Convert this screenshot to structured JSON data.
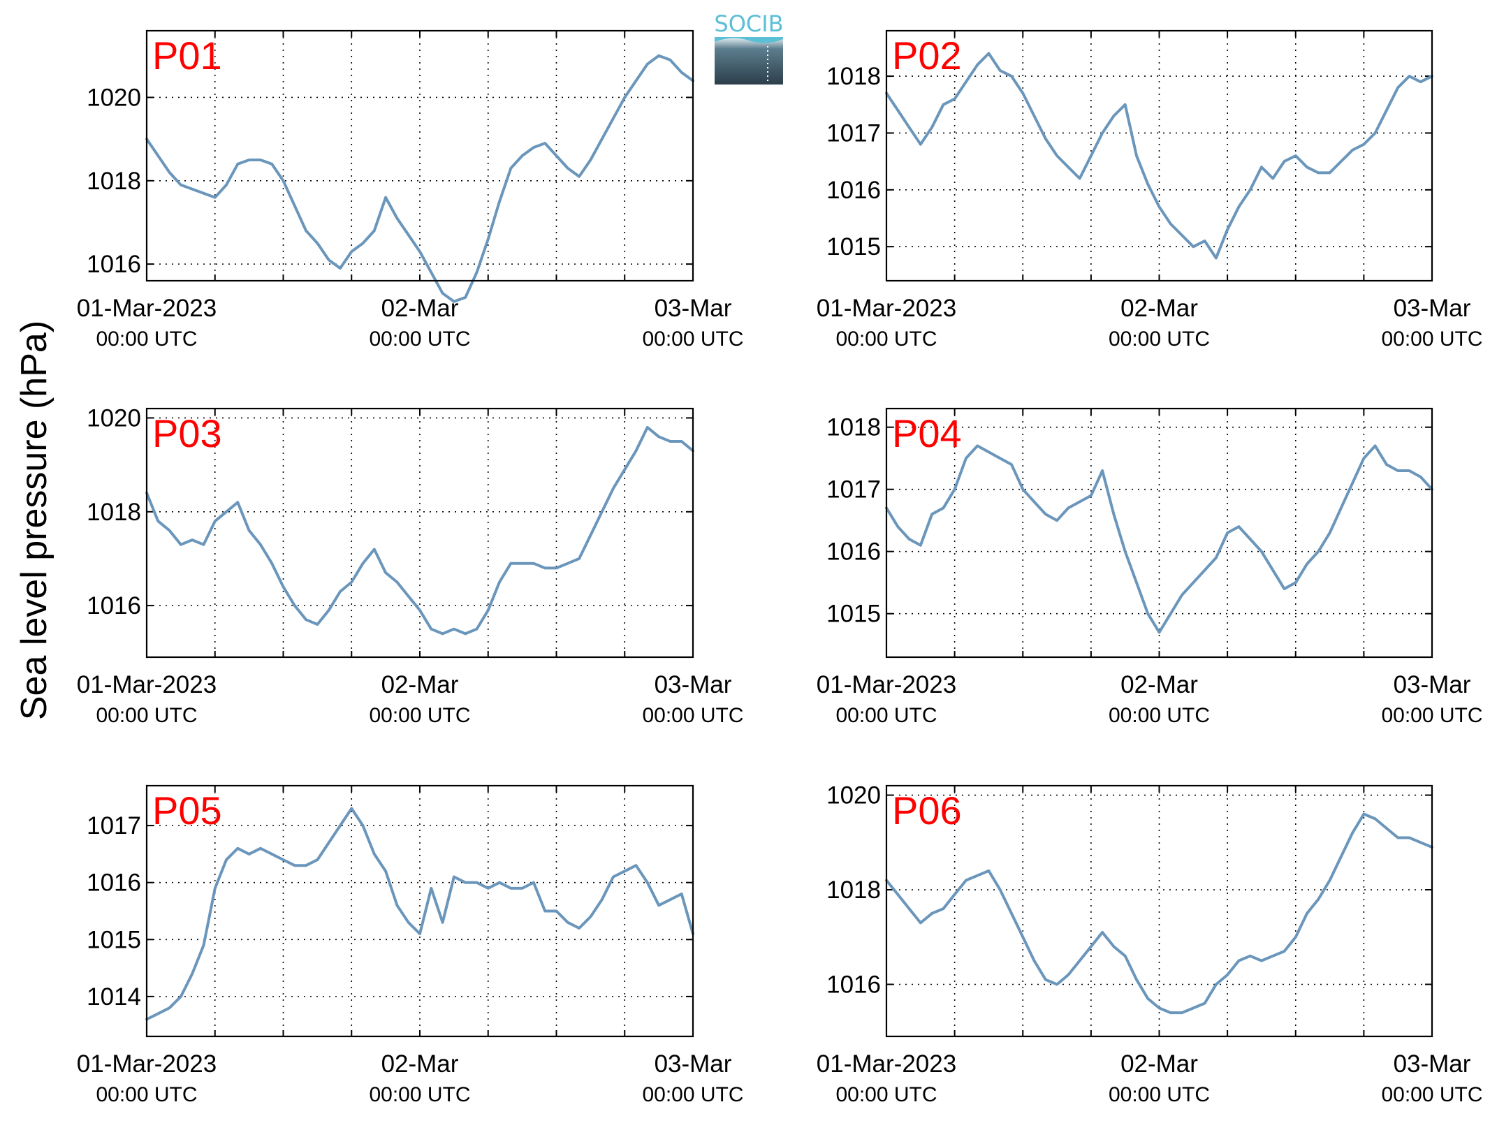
{
  "figure": {
    "ylabel": "Sea level pressure (hPa)",
    "logo_text": "SOCIB",
    "line_color": "#6b96bb",
    "label_color": "#ff0000",
    "logo_color": "#5bbfd6"
  },
  "chart_data": [
    {
      "type": "line",
      "panel_label": "P01",
      "xlim": [
        0,
        48
      ],
      "ylim": [
        1015.6,
        1021.6
      ],
      "yticks": [
        1016,
        1018,
        1020
      ],
      "xticks": [
        {
          "x": 0,
          "line1": "01-Mar-2023",
          "line2": "00:00 UTC"
        },
        {
          "x": 24,
          "line1": "02-Mar",
          "line2": "00:00 UTC"
        },
        {
          "x": 48,
          "line1": "03-Mar",
          "line2": "00:00 UTC"
        }
      ],
      "grid": true,
      "series": [
        {
          "x": [
            0,
            1,
            2,
            3,
            4,
            5,
            6,
            7,
            8,
            9,
            10,
            11,
            12,
            13,
            14,
            15,
            16,
            17,
            18,
            19,
            20,
            21,
            22,
            23,
            24,
            25,
            26,
            27,
            28,
            29,
            30,
            31,
            32,
            33,
            34,
            35,
            36,
            37,
            38,
            39,
            40,
            41,
            42,
            43,
            44,
            45,
            46,
            47,
            48
          ],
          "y": [
            1019.0,
            1018.6,
            1018.2,
            1017.9,
            1017.8,
            1017.7,
            1017.6,
            1017.9,
            1018.4,
            1018.5,
            1018.5,
            1018.4,
            1018.0,
            1017.4,
            1016.8,
            1016.5,
            1016.1,
            1015.9,
            1016.3,
            1016.5,
            1016.8,
            1017.6,
            1017.1,
            1016.7,
            1016.3,
            1015.8,
            1015.3,
            1015.1,
            1015.2,
            1015.8,
            1016.6,
            1017.5,
            1018.3,
            1018.6,
            1018.8,
            1018.9,
            1018.6,
            1018.3,
            1018.1,
            1018.5,
            1019.0,
            1019.5,
            1020.0,
            1020.4,
            1020.8,
            1021.0,
            1020.9,
            1020.6,
            1020.4
          ]
        }
      ]
    },
    {
      "type": "line",
      "panel_label": "P02",
      "xlim": [
        0,
        48
      ],
      "ylim": [
        1014.4,
        1018.8
      ],
      "yticks": [
        1015,
        1016,
        1017,
        1018
      ],
      "xticks": [
        {
          "x": 0,
          "line1": "01-Mar-2023",
          "line2": "00:00 UTC"
        },
        {
          "x": 24,
          "line1": "02-Mar",
          "line2": "00:00 UTC"
        },
        {
          "x": 48,
          "line1": "03-Mar",
          "line2": "00:00 UTC"
        }
      ],
      "grid": true,
      "series": [
        {
          "x": [
            0,
            1,
            2,
            3,
            4,
            5,
            6,
            7,
            8,
            9,
            10,
            11,
            12,
            13,
            14,
            15,
            16,
            17,
            18,
            19,
            20,
            21,
            22,
            23,
            24,
            25,
            26,
            27,
            28,
            29,
            30,
            31,
            32,
            33,
            34,
            35,
            36,
            37,
            38,
            39,
            40,
            41,
            42,
            43,
            44,
            45,
            46,
            47,
            48
          ],
          "y": [
            1017.7,
            1017.4,
            1017.1,
            1016.8,
            1017.1,
            1017.5,
            1017.6,
            1017.9,
            1018.2,
            1018.4,
            1018.1,
            1018.0,
            1017.7,
            1017.3,
            1016.9,
            1016.6,
            1016.4,
            1016.2,
            1016.6,
            1017.0,
            1017.3,
            1017.5,
            1016.6,
            1016.1,
            1015.7,
            1015.4,
            1015.2,
            1015.0,
            1015.1,
            1014.8,
            1015.3,
            1015.7,
            1016.0,
            1016.4,
            1016.2,
            1016.5,
            1016.6,
            1016.4,
            1016.3,
            1016.3,
            1016.5,
            1016.7,
            1016.8,
            1017.0,
            1017.4,
            1017.8,
            1018.0,
            1017.9,
            1018.0
          ]
        }
      ]
    },
    {
      "type": "line",
      "panel_label": "P03",
      "xlim": [
        0,
        48
      ],
      "ylim": [
        1014.9,
        1020.2
      ],
      "yticks": [
        1016,
        1018,
        1020
      ],
      "xticks": [
        {
          "x": 0,
          "line1": "01-Mar-2023",
          "line2": "00:00 UTC"
        },
        {
          "x": 24,
          "line1": "02-Mar",
          "line2": "00:00 UTC"
        },
        {
          "x": 48,
          "line1": "03-Mar",
          "line2": "00:00 UTC"
        }
      ],
      "grid": true,
      "series": [
        {
          "x": [
            0,
            1,
            2,
            3,
            4,
            5,
            6,
            7,
            8,
            9,
            10,
            11,
            12,
            13,
            14,
            15,
            16,
            17,
            18,
            19,
            20,
            21,
            22,
            23,
            24,
            25,
            26,
            27,
            28,
            29,
            30,
            31,
            32,
            33,
            34,
            35,
            36,
            37,
            38,
            39,
            40,
            41,
            42,
            43,
            44,
            45,
            46,
            47,
            48
          ],
          "y": [
            1018.4,
            1017.8,
            1017.6,
            1017.3,
            1017.4,
            1017.3,
            1017.8,
            1018.0,
            1018.2,
            1017.6,
            1017.3,
            1016.9,
            1016.4,
            1016.0,
            1015.7,
            1015.6,
            1015.9,
            1016.3,
            1016.5,
            1016.9,
            1017.2,
            1016.7,
            1016.5,
            1016.2,
            1015.9,
            1015.5,
            1015.4,
            1015.5,
            1015.4,
            1015.5,
            1015.9,
            1016.5,
            1016.9,
            1016.9,
            1016.9,
            1016.8,
            1016.8,
            1016.9,
            1017.0,
            1017.5,
            1018.0,
            1018.5,
            1018.9,
            1019.3,
            1019.8,
            1019.6,
            1019.5,
            1019.5,
            1019.3
          ]
        }
      ]
    },
    {
      "type": "line",
      "panel_label": "P04",
      "xlim": [
        0,
        48
      ],
      "ylim": [
        1014.3,
        1018.3
      ],
      "yticks": [
        1015,
        1016,
        1017,
        1018
      ],
      "xticks": [
        {
          "x": 0,
          "line1": "01-Mar-2023",
          "line2": "00:00 UTC"
        },
        {
          "x": 24,
          "line1": "02-Mar",
          "line2": "00:00 UTC"
        },
        {
          "x": 48,
          "line1": "03-Mar",
          "line2": "00:00 UTC"
        }
      ],
      "grid": true,
      "series": [
        {
          "x": [
            0,
            1,
            2,
            3,
            4,
            5,
            6,
            7,
            8,
            9,
            10,
            11,
            12,
            13,
            14,
            15,
            16,
            17,
            18,
            19,
            20,
            21,
            22,
            23,
            24,
            25,
            26,
            27,
            28,
            29,
            30,
            31,
            32,
            33,
            34,
            35,
            36,
            37,
            38,
            39,
            40,
            41,
            42,
            43,
            44,
            45,
            46,
            47,
            48
          ],
          "y": [
            1016.7,
            1016.4,
            1016.2,
            1016.1,
            1016.6,
            1016.7,
            1017.0,
            1017.5,
            1017.7,
            1017.6,
            1017.5,
            1017.4,
            1017.0,
            1016.8,
            1016.6,
            1016.5,
            1016.7,
            1016.8,
            1016.9,
            1017.3,
            1016.6,
            1016.0,
            1015.5,
            1015.0,
            1014.7,
            1015.0,
            1015.3,
            1015.5,
            1015.7,
            1015.9,
            1016.3,
            1016.4,
            1016.2,
            1016.0,
            1015.7,
            1015.4,
            1015.5,
            1015.8,
            1016.0,
            1016.3,
            1016.7,
            1017.1,
            1017.5,
            1017.7,
            1017.4,
            1017.3,
            1017.3,
            1017.2,
            1017.0
          ]
        }
      ]
    },
    {
      "type": "line",
      "panel_label": "P05",
      "xlim": [
        0,
        48
      ],
      "ylim": [
        1013.3,
        1017.7
      ],
      "yticks": [
        1014,
        1015,
        1016,
        1017
      ],
      "xticks": [
        {
          "x": 0,
          "line1": "01-Mar-2023",
          "line2": "00:00 UTC"
        },
        {
          "x": 24,
          "line1": "02-Mar",
          "line2": "00:00 UTC"
        },
        {
          "x": 48,
          "line1": "03-Mar",
          "line2": "00:00 UTC"
        }
      ],
      "grid": true,
      "series": [
        {
          "x": [
            0,
            1,
            2,
            3,
            4,
            5,
            6,
            7,
            8,
            9,
            10,
            11,
            12,
            13,
            14,
            15,
            16,
            17,
            18,
            19,
            20,
            21,
            22,
            23,
            24,
            25,
            26,
            27,
            28,
            29,
            30,
            31,
            32,
            33,
            34,
            35,
            36,
            37,
            38,
            39,
            40,
            41,
            42,
            43,
            44,
            45,
            46,
            47,
            48
          ],
          "y": [
            1013.6,
            1013.7,
            1013.8,
            1014.0,
            1014.4,
            1014.9,
            1015.9,
            1016.4,
            1016.6,
            1016.5,
            1016.6,
            1016.5,
            1016.4,
            1016.3,
            1016.3,
            1016.4,
            1016.7,
            1017.0,
            1017.3,
            1017.0,
            1016.5,
            1016.2,
            1015.6,
            1015.3,
            1015.1,
            1015.9,
            1015.3,
            1016.1,
            1016.0,
            1016.0,
            1015.9,
            1016.0,
            1015.9,
            1015.9,
            1016.0,
            1015.5,
            1015.5,
            1015.3,
            1015.2,
            1015.4,
            1015.7,
            1016.1,
            1016.2,
            1016.3,
            1016.0,
            1015.6,
            1015.7,
            1015.8,
            1015.1
          ]
        }
      ]
    },
    {
      "type": "line",
      "panel_label": "P06",
      "xlim": [
        0,
        48
      ],
      "ylim": [
        1014.9,
        1020.2
      ],
      "yticks": [
        1016,
        1018,
        1020
      ],
      "xticks": [
        {
          "x": 0,
          "line1": "01-Mar-2023",
          "line2": "00:00 UTC"
        },
        {
          "x": 24,
          "line1": "02-Mar",
          "line2": "00:00 UTC"
        },
        {
          "x": 48,
          "line1": "03-Mar",
          "line2": "00:00 UTC"
        }
      ],
      "grid": true,
      "series": [
        {
          "x": [
            0,
            1,
            2,
            3,
            4,
            5,
            6,
            7,
            8,
            9,
            10,
            11,
            12,
            13,
            14,
            15,
            16,
            17,
            18,
            19,
            20,
            21,
            22,
            23,
            24,
            25,
            26,
            27,
            28,
            29,
            30,
            31,
            32,
            33,
            34,
            35,
            36,
            37,
            38,
            39,
            40,
            41,
            42,
            43,
            44,
            45,
            46,
            47,
            48
          ],
          "y": [
            1018.2,
            1017.9,
            1017.6,
            1017.3,
            1017.5,
            1017.6,
            1017.9,
            1018.2,
            1018.3,
            1018.4,
            1018.0,
            1017.5,
            1017.0,
            1016.5,
            1016.1,
            1016.0,
            1016.2,
            1016.5,
            1016.8,
            1017.1,
            1016.8,
            1016.6,
            1016.1,
            1015.7,
            1015.5,
            1015.4,
            1015.4,
            1015.5,
            1015.6,
            1016.0,
            1016.2,
            1016.5,
            1016.6,
            1016.5,
            1016.6,
            1016.7,
            1017.0,
            1017.5,
            1017.8,
            1018.2,
            1018.7,
            1019.2,
            1019.6,
            1019.5,
            1019.3,
            1019.1,
            1019.1,
            1019.0,
            1018.9
          ]
        }
      ]
    }
  ]
}
